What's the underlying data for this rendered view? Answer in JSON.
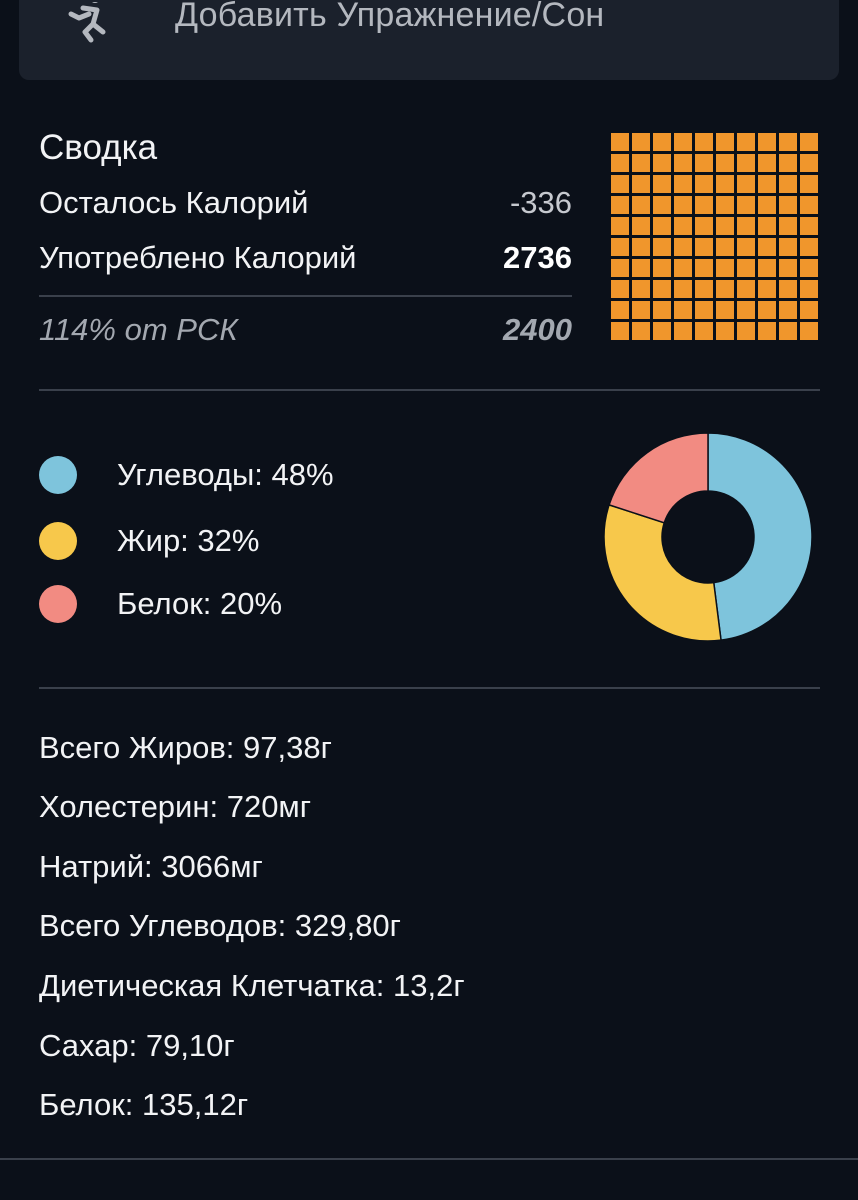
{
  "add_button": {
    "label": "Добавить Упражнение/Сон",
    "icon": "running-person-icon"
  },
  "summary": {
    "title": "Сводка",
    "remaining_label": "Осталось Калорий",
    "remaining_value": "-336",
    "consumed_label": "Употреблено Калорий",
    "consumed_value": "2736",
    "percent_label": "114% от РСК",
    "goal_value": "2400",
    "waffle": {
      "filled_cells": 100,
      "total_cells": 100,
      "color": "#f0962c"
    }
  },
  "macros": {
    "items": [
      {
        "label": "Углеводы: 48%",
        "percent": 48,
        "color": "#7ec4dc"
      },
      {
        "label": "Жир: 32%",
        "percent": 32,
        "color": "#f7c84b"
      },
      {
        "label": "Белок: 20%",
        "percent": 20,
        "color": "#f28b82"
      }
    ]
  },
  "nutrients": [
    "Всего Жиров: 97,38г",
    "Холестерин: 720мг",
    "Натрий: 3066мг",
    "Всего Углеводов: 329,80г",
    "Диетическая Клетчатка: 13,2г",
    "Сахар: 79,10г",
    "Белок: 135,12г"
  ],
  "colors": {
    "background": "#0b1019",
    "card": "#1b212c",
    "divider": "#3a404b"
  }
}
